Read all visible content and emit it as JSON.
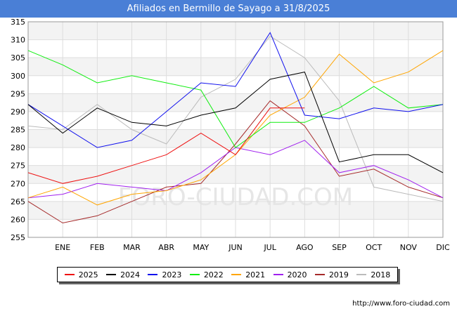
{
  "title": "Afiliados en Bermillo de Sayago a 31/8/2025",
  "source": "http://www.foro-ciudad.com",
  "watermark": "FORO-CIUDAD.COM",
  "chart_data": {
    "type": "line",
    "categories": [
      "",
      "ENE",
      "FEB",
      "MAR",
      "ABR",
      "MAY",
      "JUN",
      "JUL",
      "AGO",
      "SEP",
      "OCT",
      "NOV",
      "DIC"
    ],
    "ylim": [
      255,
      315
    ],
    "yticks": [
      255,
      260,
      265,
      270,
      275,
      280,
      285,
      290,
      295,
      300,
      305,
      310,
      315
    ],
    "grid": true,
    "legend_position": "bottom",
    "series": [
      {
        "name": "2025",
        "color": "#ee1111",
        "values": [
          273,
          270,
          272,
          275,
          278,
          284,
          278,
          291,
          291,
          null,
          null,
          null,
          null
        ]
      },
      {
        "name": "2024",
        "color": "#000000",
        "values": [
          292,
          284,
          291,
          287,
          286,
          289,
          291,
          299,
          301,
          276,
          278,
          278,
          273
        ]
      },
      {
        "name": "2023",
        "color": "#1010ee",
        "values": [
          292,
          286,
          280,
          282,
          290,
          298,
          297,
          312,
          289,
          288,
          291,
          290,
          292
        ]
      },
      {
        "name": "2022",
        "color": "#11ee11",
        "values": [
          307,
          303,
          298,
          300,
          298,
          296,
          280,
          287,
          287,
          291,
          297,
          291,
          292
        ]
      },
      {
        "name": "2021",
        "color": "#ffa500",
        "values": [
          266,
          269,
          264,
          267,
          268,
          271,
          278,
          289,
          294,
          306,
          298,
          301,
          307
        ]
      },
      {
        "name": "2020",
        "color": "#a020ee",
        "values": [
          266,
          267,
          270,
          269,
          268,
          273,
          280,
          278,
          282,
          273,
          275,
          271,
          266
        ]
      },
      {
        "name": "2019",
        "color": "#a52a2a",
        "values": [
          265,
          259,
          261,
          265,
          269,
          270,
          281,
          293,
          286,
          272,
          274,
          269,
          266
        ]
      },
      {
        "name": "2018",
        "color": "#bbbbbb",
        "values": [
          286,
          285,
          292,
          285,
          281,
          294,
          299,
          311,
          305,
          293,
          269,
          267,
          265
        ]
      }
    ]
  }
}
